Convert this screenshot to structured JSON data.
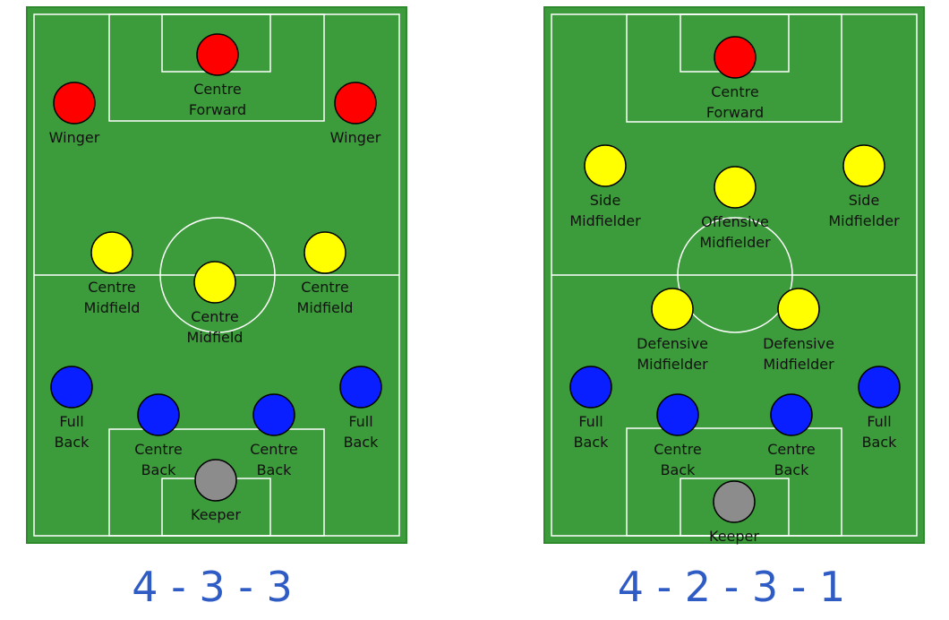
{
  "colors": {
    "grass": "#3c9b3a",
    "grass_border": "#2f8a2e",
    "lines": "#ffffff",
    "forward": "#ff0000",
    "midfield": "#ffff00",
    "defence": "#0a1fff",
    "keeper": "#8c8c8c",
    "caption": "#2f5bc4"
  },
  "formations": [
    {
      "caption": "4 - 3 - 3",
      "players": [
        {
          "role": "forward",
          "lines": [
            "Centre",
            "Forward"
          ]
        },
        {
          "role": "forward",
          "lines": [
            "Winger"
          ]
        },
        {
          "role": "forward",
          "lines": [
            "Winger"
          ]
        },
        {
          "role": "midfield",
          "lines": [
            "Centre",
            "Midfield"
          ]
        },
        {
          "role": "midfield",
          "lines": [
            "Centre",
            "Midfield"
          ]
        },
        {
          "role": "midfield",
          "lines": [
            "Centre",
            "Midfield"
          ]
        },
        {
          "role": "defence",
          "lines": [
            "Full",
            "Back"
          ]
        },
        {
          "role": "defence",
          "lines": [
            "Centre",
            "Back"
          ]
        },
        {
          "role": "defence",
          "lines": [
            "Centre",
            "Back"
          ]
        },
        {
          "role": "defence",
          "lines": [
            "Full",
            "Back"
          ]
        },
        {
          "role": "keeper",
          "lines": [
            "Keeper"
          ]
        }
      ]
    },
    {
      "caption": "4 - 2 - 3 - 1",
      "players": [
        {
          "role": "forward",
          "lines": [
            "Centre",
            "Forward"
          ]
        },
        {
          "role": "midfield",
          "lines": [
            "Side",
            "Midfielder"
          ]
        },
        {
          "role": "midfield",
          "lines": [
            "Offensive",
            "Midfielder"
          ]
        },
        {
          "role": "midfield",
          "lines": [
            "Side",
            "Midfielder"
          ]
        },
        {
          "role": "midfield",
          "lines": [
            "Defensive",
            "Midfielder"
          ]
        },
        {
          "role": "midfield",
          "lines": [
            "Defensive",
            "Midfielder"
          ]
        },
        {
          "role": "defence",
          "lines": [
            "Full",
            "Back"
          ]
        },
        {
          "role": "defence",
          "lines": [
            "Centre",
            "Back"
          ]
        },
        {
          "role": "defence",
          "lines": [
            "Centre",
            "Back"
          ]
        },
        {
          "role": "defence",
          "lines": [
            "Full",
            "Back"
          ]
        },
        {
          "role": "keeper",
          "lines": [
            "Keeper"
          ]
        }
      ]
    }
  ]
}
